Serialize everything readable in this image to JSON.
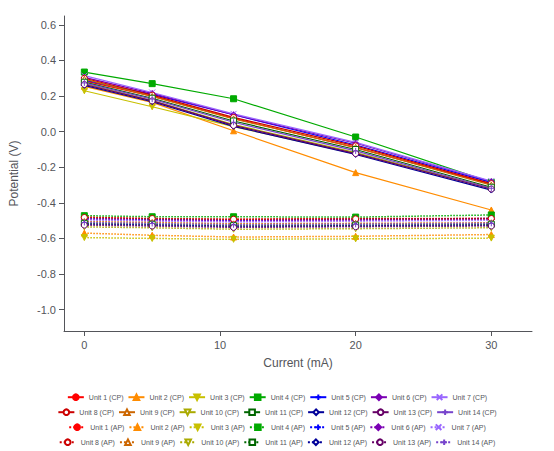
{
  "chart_data": {
    "type": "line",
    "xlabel": "Current (mA)",
    "ylabel": "Potential (V)",
    "x": [
      0,
      5,
      11,
      20,
      30
    ],
    "xlim": [
      -1.5,
      33
    ],
    "ylim": [
      -1.12,
      0.65
    ],
    "xticks": [
      0,
      10,
      20,
      30
    ],
    "yticks": [
      0.6,
      0.4,
      0.2,
      {
        "value": 0.0,
        "label": "0.0"
      },
      -0.2,
      -0.4,
      -0.6,
      -0.8,
      {
        "value": -1.0,
        "label": "-1.0"
      }
    ],
    "grid": false,
    "legend": "bottom",
    "series": [
      {
        "name": "Unit 1 (CP)",
        "color": "#ff0000",
        "marker": "circle",
        "line_style": "solid",
        "values": [
          0.285,
          0.2,
          0.075,
          -0.09,
          -0.295
        ]
      },
      {
        "name": "Unit 2 (CP)",
        "color": "#ff8c00",
        "marker": "triangle-up",
        "line_style": "solid",
        "values": [
          0.255,
          0.165,
          0.005,
          -0.23,
          -0.44
        ]
      },
      {
        "name": "Unit 3 (CP)",
        "color": "#c8c000",
        "marker": "triangle-down",
        "line_style": "solid",
        "values": [
          0.23,
          0.14,
          0.028,
          -0.125,
          -0.315
        ]
      },
      {
        "name": "Unit 4 (CP)",
        "color": "#00aa00",
        "marker": "square",
        "line_style": "solid",
        "values": [
          0.335,
          0.27,
          0.185,
          -0.03,
          -0.285
        ]
      },
      {
        "name": "Unit 5 (CP)",
        "color": "#0000ff",
        "marker": "plus",
        "line_style": "solid",
        "values": [
          0.29,
          0.21,
          0.095,
          -0.075,
          -0.285
        ]
      },
      {
        "name": "Unit 6 (CP)",
        "color": "#7b00b4",
        "marker": "diamond",
        "line_style": "solid",
        "values": [
          0.305,
          0.215,
          0.095,
          -0.065,
          -0.28
        ]
      },
      {
        "name": "Unit 7 (CP)",
        "color": "#9966ff",
        "marker": "x",
        "line_style": "solid",
        "values": [
          0.315,
          0.22,
          0.1,
          -0.06,
          -0.278
        ]
      },
      {
        "name": "Unit 8 (CP)",
        "color": "#cc0000",
        "marker": "circle-open",
        "line_style": "solid",
        "values": [
          0.3,
          0.205,
          0.08,
          -0.08,
          -0.292
        ]
      },
      {
        "name": "Unit 9 (CP)",
        "color": "#cc6600",
        "marker": "triangle-up-open",
        "line_style": "solid",
        "values": [
          0.295,
          0.198,
          0.072,
          -0.088,
          -0.3
        ]
      },
      {
        "name": "Unit 10 (CP)",
        "color": "#aaaa00",
        "marker": "triangle-down-open",
        "line_style": "solid",
        "values": [
          0.27,
          0.175,
          0.04,
          -0.118,
          -0.32
        ]
      },
      {
        "name": "Unit 11 (CP)",
        "color": "#006600",
        "marker": "square-open",
        "line_style": "solid",
        "values": [
          0.278,
          0.188,
          0.06,
          -0.1,
          -0.312
        ]
      },
      {
        "name": "Unit 12 (CP)",
        "color": "#000099",
        "marker": "diamond-open",
        "line_style": "solid",
        "values": [
          0.26,
          0.168,
          0.03,
          -0.128,
          -0.328
        ]
      },
      {
        "name": "Unit 13 (CP)",
        "color": "#660066",
        "marker": "circle-open",
        "line_style": "solid",
        "values": [
          0.265,
          0.173,
          0.035,
          -0.123,
          -0.322
        ]
      },
      {
        "name": "Unit 14 (CP)",
        "color": "#7744cc",
        "marker": "plus-open",
        "line_style": "solid",
        "values": [
          0.274,
          0.183,
          0.053,
          -0.108,
          -0.318
        ]
      },
      {
        "name": "Unit 1 (AP)",
        "color": "#ff0000",
        "marker": "circle",
        "line_style": "dotted",
        "values": [
          -0.48,
          -0.49,
          -0.492,
          -0.488,
          -0.488
        ]
      },
      {
        "name": "Unit 2 (AP)",
        "color": "#ff8c00",
        "marker": "triangle-up",
        "line_style": "dotted",
        "values": [
          -0.57,
          -0.582,
          -0.592,
          -0.588,
          -0.578
        ]
      },
      {
        "name": "Unit 3 (AP)",
        "color": "#c8c000",
        "marker": "triangle-down",
        "line_style": "dotted",
        "values": [
          -0.595,
          -0.6,
          -0.605,
          -0.602,
          -0.598
        ]
      },
      {
        "name": "Unit 4 (AP)",
        "color": "#00aa00",
        "marker": "square",
        "line_style": "dotted",
        "values": [
          -0.472,
          -0.478,
          -0.478,
          -0.48,
          -0.468
        ]
      },
      {
        "name": "Unit 5 (AP)",
        "color": "#0000ff",
        "marker": "plus",
        "line_style": "dotted",
        "values": [
          -0.488,
          -0.493,
          -0.498,
          -0.493,
          -0.488
        ]
      },
      {
        "name": "Unit 6 (AP)",
        "color": "#7b00b4",
        "marker": "diamond",
        "line_style": "dotted",
        "values": [
          -0.492,
          -0.498,
          -0.502,
          -0.498,
          -0.492
        ]
      },
      {
        "name": "Unit 7 (AP)",
        "color": "#9966ff",
        "marker": "x",
        "line_style": "dotted",
        "values": [
          -0.496,
          -0.502,
          -0.508,
          -0.503,
          -0.498
        ]
      },
      {
        "name": "Unit 8 (AP)",
        "color": "#cc0000",
        "marker": "circle-open",
        "line_style": "dotted",
        "values": [
          -0.482,
          -0.488,
          -0.492,
          -0.49,
          -0.488
        ]
      },
      {
        "name": "Unit 9 (AP)",
        "color": "#cc6600",
        "marker": "triangle-up-open",
        "line_style": "dotted",
        "values": [
          -0.505,
          -0.51,
          -0.518,
          -0.515,
          -0.512
        ]
      },
      {
        "name": "Unit 10 (AP)",
        "color": "#aaaa00",
        "marker": "triangle-down-open",
        "line_style": "dotted",
        "values": [
          -0.535,
          -0.54,
          -0.548,
          -0.545,
          -0.54
        ]
      },
      {
        "name": "Unit 11 (AP)",
        "color": "#006600",
        "marker": "square-open",
        "line_style": "dotted",
        "values": [
          -0.515,
          -0.52,
          -0.528,
          -0.525,
          -0.52
        ]
      },
      {
        "name": "Unit 12 (AP)",
        "color": "#000099",
        "marker": "diamond-open",
        "line_style": "dotted",
        "values": [
          -0.52,
          -0.525,
          -0.533,
          -0.53,
          -0.525
        ]
      },
      {
        "name": "Unit 13 (AP)",
        "color": "#660066",
        "marker": "circle-open",
        "line_style": "dotted",
        "values": [
          -0.525,
          -0.53,
          -0.538,
          -0.534,
          -0.53
        ]
      },
      {
        "name": "Unit 14 (AP)",
        "color": "#7744cc",
        "marker": "plus-open",
        "line_style": "dotted",
        "values": [
          -0.51,
          -0.516,
          -0.523,
          -0.52,
          -0.515
        ]
      }
    ]
  }
}
